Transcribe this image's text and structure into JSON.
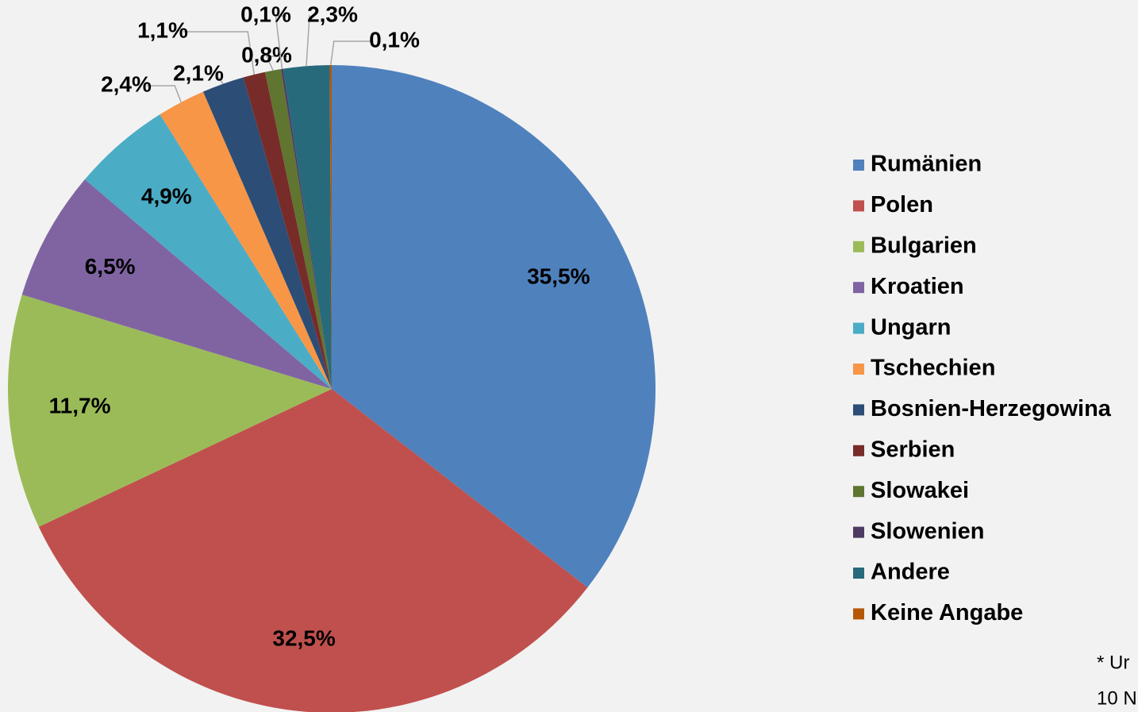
{
  "chart_data": {
    "type": "pie",
    "categories": [
      "Rumänien",
      "Polen",
      "Bulgarien",
      "Kroatien",
      "Ungarn",
      "Tschechien",
      "Bosnien-Herzegowina",
      "Serbien",
      "Slowakei",
      "Slowenien",
      "Andere",
      "Keine Angabe"
    ],
    "values": [
      35.5,
      32.5,
      11.7,
      6.5,
      4.9,
      2.4,
      2.1,
      1.1,
      0.8,
      0.1,
      2.3,
      0.1
    ],
    "value_labels": [
      "35,5%",
      "32,5%",
      "11,7%",
      "6,5%",
      "4,9%",
      "2,4%",
      "2,1%",
      "1,1%",
      "0,8%",
      "0,1%",
      "2,3%",
      "0,1%"
    ],
    "colors": [
      "#4f81bd",
      "#c0504d",
      "#9bbb59",
      "#8064a2",
      "#4bacc6",
      "#f79646",
      "#2c4d75",
      "#772c2a",
      "#5f7530",
      "#4d3b62",
      "#276a7c",
      "#b65708"
    ],
    "legend": "right",
    "footnote": [
      "* Ur",
      "10 N"
    ]
  }
}
